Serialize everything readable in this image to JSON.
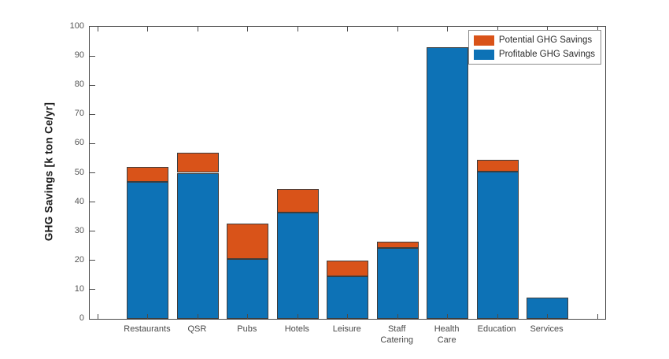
{
  "chart_data": {
    "type": "bar",
    "stacked": true,
    "title": "",
    "xlabel": "",
    "ylabel": "GHG Savings [k ton Ce/yr]",
    "ylim": [
      0,
      100
    ],
    "yticks": [
      0,
      10,
      20,
      30,
      40,
      50,
      60,
      70,
      80,
      90,
      100
    ],
    "grid": false,
    "legend_position": "top-right-inside",
    "categories": [
      "Restaurants",
      "QSR",
      "Pubs",
      "Hotels",
      "Leisure",
      "Staff Catering",
      "Health Care",
      "Education",
      "Services"
    ],
    "series": [
      {
        "name": "Profitable GHG Savings",
        "color": "#0d72b6",
        "values": [
          47,
          50,
          20.5,
          36.5,
          14.5,
          24.3,
          93,
          50.5,
          7.3
        ]
      },
      {
        "name": "Potential GHG Savings",
        "color": "#d95319",
        "values": [
          5,
          7,
          12,
          8,
          5.5,
          2.2,
          0,
          4,
          0
        ]
      }
    ],
    "legend_entries_order": [
      "Potential GHG Savings",
      "Profitable GHG Savings"
    ]
  },
  "colors": {
    "axis": "#4a4a4a",
    "bar_edge": "#3d3d3d",
    "background": "#ffffff",
    "legend_border": "#8c8c8c"
  }
}
